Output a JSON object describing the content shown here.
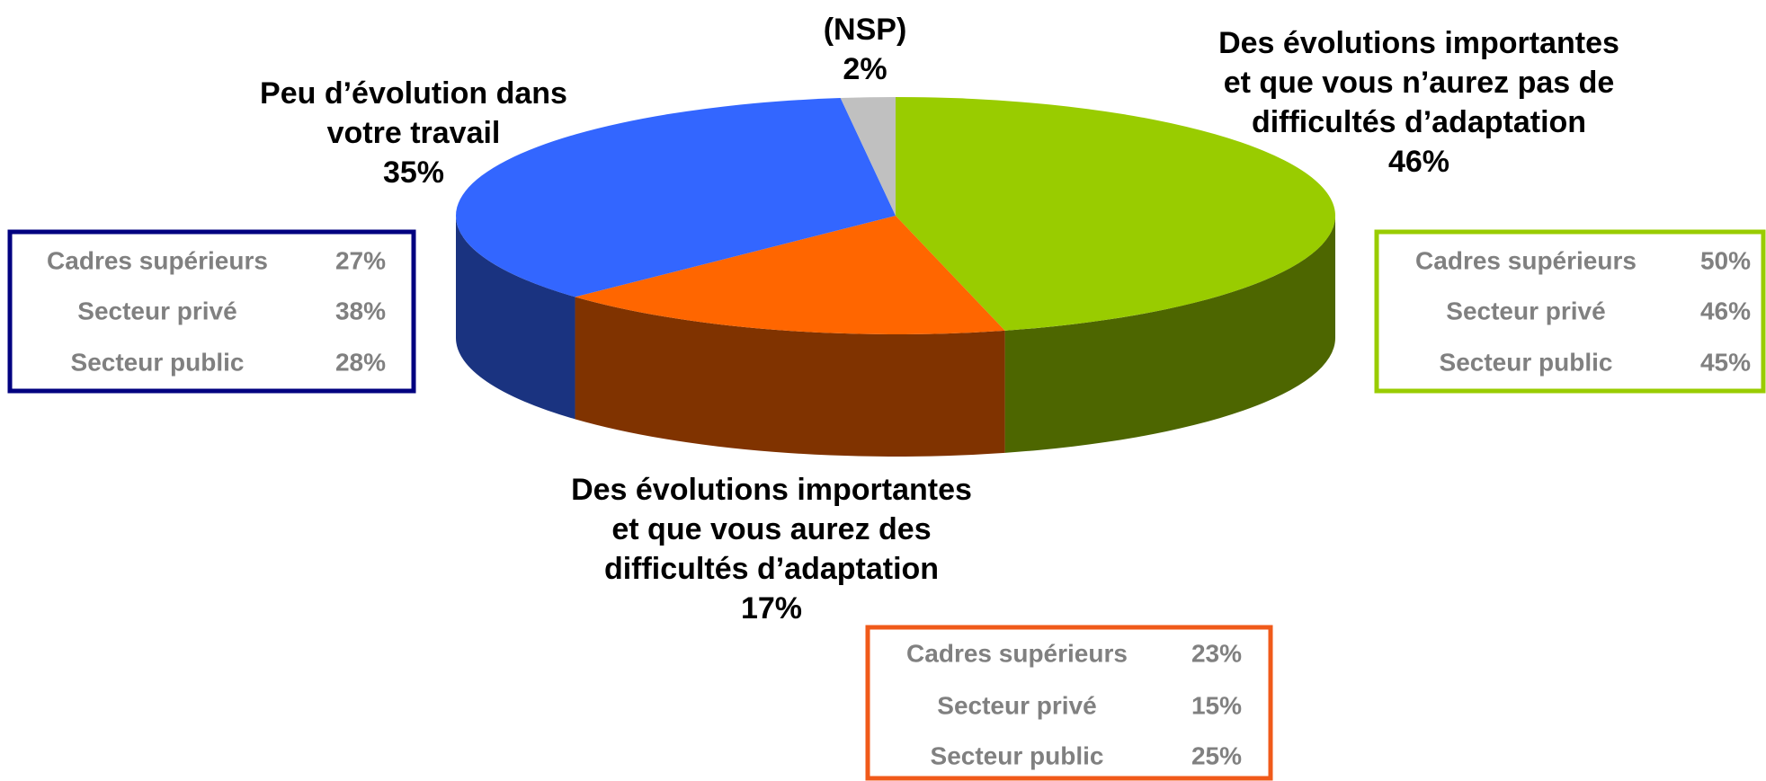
{
  "chart_data": {
    "type": "pie",
    "categories": [
      [
        "Des évolutions importantes",
        "et que vous n’aurez pas de",
        "difficultés d’adaptation"
      ],
      [
        "Des évolutions importantes",
        "et que vous aurez des",
        "difficultés d’adaptation"
      ],
      [
        "Peu d’évolution dans",
        "votre travail"
      ],
      [
        "(NSP)"
      ]
    ],
    "values": [
      46,
      17,
      35,
      2
    ],
    "value_labels": [
      "46%",
      "17%",
      "35%",
      "2%"
    ],
    "colors": [
      "#99cc00",
      "#ff6600",
      "#3366ff",
      "#c0c0c0"
    ],
    "breakdowns": [
      {
        "color": "#99cc00",
        "rows": [
          [
            "Cadres supérieurs",
            "50%"
          ],
          [
            "Secteur privé",
            "46%"
          ],
          [
            "Secteur public",
            "45%"
          ]
        ]
      },
      {
        "color": "#f05a1a",
        "rows": [
          [
            "Cadres supérieurs",
            "23%"
          ],
          [
            "Secteur privé",
            "15%"
          ],
          [
            "Secteur public",
            "25%"
          ]
        ]
      },
      {
        "color": "#000080",
        "rows": [
          [
            "Cadres supérieurs",
            "27%"
          ],
          [
            "Secteur privé",
            "38%"
          ],
          [
            "Secteur public",
            "28%"
          ]
        ]
      }
    ]
  }
}
